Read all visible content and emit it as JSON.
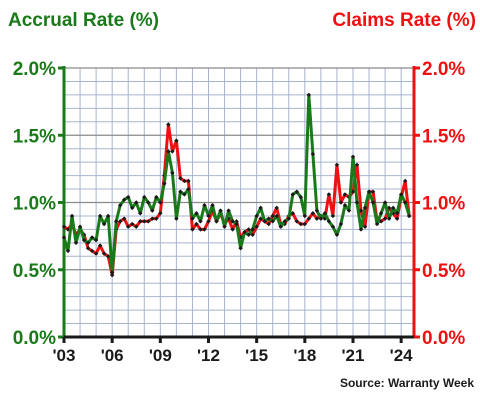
{
  "chart_data": {
    "type": "line",
    "title_left": "Accrual Rate (%)",
    "title_right": "Claims Rate (%)",
    "source": "Source: Warranty Week",
    "colors": {
      "accrual": "#1a7a1a",
      "claims": "#ee1111",
      "grid": "#a8b4cc",
      "marker": "#1a1a1a"
    },
    "grid": true,
    "x_range": [
      2003,
      2024.8
    ],
    "ylim": [
      0,
      2
    ],
    "x_ticks": [
      {
        "value": 2003,
        "label": "'03"
      },
      {
        "value": 2006,
        "label": "'06"
      },
      {
        "value": 2009,
        "label": "'09"
      },
      {
        "value": 2012,
        "label": "'12"
      },
      {
        "value": 2015,
        "label": "'15"
      },
      {
        "value": 2018,
        "label": "'18"
      },
      {
        "value": 2021,
        "label": "'21"
      },
      {
        "value": 2024,
        "label": "'24"
      }
    ],
    "y_ticks_left": [
      {
        "value": 0,
        "label": "0.0%"
      },
      {
        "value": 0.5,
        "label": "0.5%"
      },
      {
        "value": 1,
        "label": "1.0%"
      },
      {
        "value": 1.5,
        "label": "1.5%"
      },
      {
        "value": 2,
        "label": "2.0%"
      }
    ],
    "y_ticks_right": [
      {
        "value": 0,
        "label": "0.0%"
      },
      {
        "value": 0.5,
        "label": "0.5%"
      },
      {
        "value": 1,
        "label": "1.0%"
      },
      {
        "value": 1.5,
        "label": "1.5%"
      },
      {
        "value": 2,
        "label": "2.0%"
      }
    ],
    "series": [
      {
        "name": "Accrual Rate (%)",
        "axis": "left",
        "color": "#1a7a1a",
        "x": [
          2003.0,
          2003.25,
          2003.5,
          2003.75,
          2004.0,
          2004.25,
          2004.5,
          2004.75,
          2005.0,
          2005.25,
          2005.5,
          2005.75,
          2006.0,
          2006.25,
          2006.5,
          2006.75,
          2007.0,
          2007.25,
          2007.5,
          2007.75,
          2008.0,
          2008.25,
          2008.5,
          2008.75,
          2009.0,
          2009.25,
          2009.5,
          2009.75,
          2010.0,
          2010.25,
          2010.5,
          2010.75,
          2011.0,
          2011.25,
          2011.5,
          2011.75,
          2012.0,
          2012.25,
          2012.5,
          2012.75,
          2013.0,
          2013.25,
          2013.5,
          2013.75,
          2014.0,
          2014.25,
          2014.5,
          2014.75,
          2015.0,
          2015.25,
          2015.5,
          2015.75,
          2016.0,
          2016.25,
          2016.5,
          2016.75,
          2017.0,
          2017.25,
          2017.5,
          2017.75,
          2018.0,
          2018.25,
          2018.5,
          2018.75,
          2019.0,
          2019.25,
          2019.5,
          2019.75,
          2020.0,
          2020.25,
          2020.5,
          2020.75,
          2021.0,
          2021.25,
          2021.5,
          2021.75,
          2022.0,
          2022.25,
          2022.5,
          2022.75,
          2023.0,
          2023.25,
          2023.5,
          2023.75,
          2024.0,
          2024.25,
          2024.5
        ],
        "values": [
          0.74,
          0.64,
          0.9,
          0.7,
          0.82,
          0.72,
          0.7,
          0.74,
          0.72,
          0.9,
          0.84,
          0.9,
          0.48,
          0.86,
          0.98,
          1.02,
          1.04,
          0.96,
          1.0,
          0.92,
          1.04,
          1.0,
          0.94,
          1.04,
          1.0,
          1.14,
          1.38,
          1.22,
          0.88,
          1.08,
          1.06,
          1.1,
          0.88,
          0.92,
          0.86,
          0.98,
          0.9,
          0.98,
          0.86,
          0.94,
          0.82,
          0.94,
          0.86,
          0.84,
          0.66,
          0.78,
          0.76,
          0.8,
          0.9,
          0.96,
          0.86,
          0.88,
          0.86,
          0.9,
          0.82,
          0.86,
          0.88,
          1.06,
          1.08,
          1.04,
          0.9,
          1.8,
          1.36,
          0.94,
          0.88,
          0.92,
          0.86,
          0.82,
          0.76,
          0.84,
          0.98,
          0.94,
          1.34,
          1.0,
          0.8,
          0.96,
          1.08,
          1.0,
          0.84,
          0.92,
          1.0,
          0.88,
          0.96,
          0.92,
          1.06,
          1.0,
          0.9
        ]
      },
      {
        "name": "Claims Rate (%)",
        "axis": "right",
        "color": "#ee1111",
        "x": [
          2003.0,
          2003.25,
          2003.5,
          2003.75,
          2004.0,
          2004.25,
          2004.5,
          2004.75,
          2005.0,
          2005.25,
          2005.5,
          2005.75,
          2006.0,
          2006.25,
          2006.5,
          2006.75,
          2007.0,
          2007.25,
          2007.5,
          2007.75,
          2008.0,
          2008.25,
          2008.5,
          2008.75,
          2009.0,
          2009.25,
          2009.5,
          2009.75,
          2010.0,
          2010.25,
          2010.5,
          2010.75,
          2011.0,
          2011.25,
          2011.5,
          2011.75,
          2012.0,
          2012.25,
          2012.5,
          2012.75,
          2013.0,
          2013.25,
          2013.5,
          2013.75,
          2014.0,
          2014.25,
          2014.5,
          2014.75,
          2015.0,
          2015.25,
          2015.5,
          2015.75,
          2016.0,
          2016.25,
          2016.5,
          2016.75,
          2017.0,
          2017.25,
          2017.5,
          2017.75,
          2018.0,
          2018.25,
          2018.5,
          2018.75,
          2019.0,
          2019.25,
          2019.5,
          2019.75,
          2020.0,
          2020.25,
          2020.5,
          2020.75,
          2021.0,
          2021.25,
          2021.5,
          2021.75,
          2022.0,
          2022.25,
          2022.5,
          2022.75,
          2023.0,
          2023.25,
          2023.5,
          2023.75,
          2024.0,
          2024.25,
          2024.5
        ],
        "values": [
          0.82,
          0.8,
          0.84,
          0.76,
          0.8,
          0.76,
          0.66,
          0.64,
          0.62,
          0.68,
          0.62,
          0.6,
          0.46,
          0.8,
          0.86,
          0.88,
          0.82,
          0.84,
          0.82,
          0.86,
          0.86,
          0.86,
          0.88,
          0.88,
          0.92,
          1.2,
          1.58,
          1.38,
          1.46,
          1.18,
          1.16,
          1.16,
          0.8,
          0.84,
          0.8,
          0.8,
          0.86,
          0.94,
          0.86,
          0.92,
          0.84,
          0.88,
          0.8,
          0.86,
          0.74,
          0.78,
          0.8,
          0.76,
          0.82,
          0.88,
          0.86,
          0.84,
          0.9,
          0.96,
          0.84,
          0.84,
          0.9,
          0.92,
          0.86,
          0.84,
          0.84,
          0.88,
          0.92,
          0.88,
          0.9,
          0.88,
          1.06,
          0.9,
          1.28,
          1.0,
          1.06,
          1.04,
          1.08,
          1.28,
          0.94,
          0.82,
          1.08,
          1.08,
          0.86,
          0.86,
          0.88,
          0.96,
          0.92,
          0.88,
          1.04,
          1.16,
          0.9
        ]
      }
    ]
  }
}
